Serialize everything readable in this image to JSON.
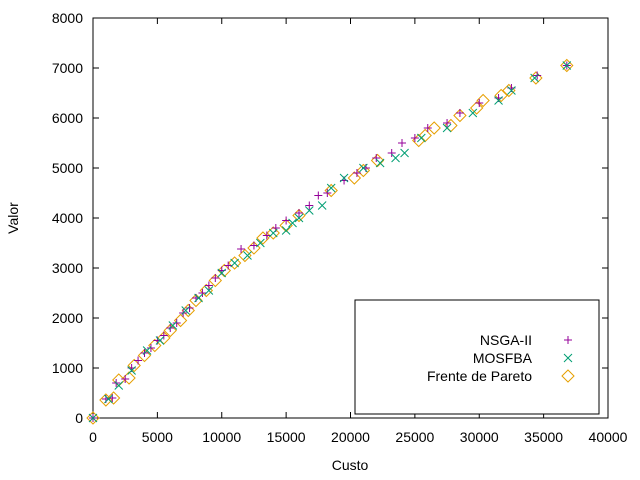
{
  "chart_data": {
    "type": "scatter",
    "title": "",
    "xlabel": "Custo",
    "ylabel": "Valor",
    "xlim": [
      0,
      40000
    ],
    "ylim": [
      0,
      8000
    ],
    "xticks": [
      0,
      5000,
      10000,
      15000,
      20000,
      25000,
      30000,
      35000,
      40000
    ],
    "yticks": [
      0,
      1000,
      2000,
      3000,
      4000,
      5000,
      6000,
      7000,
      8000
    ],
    "grid": false,
    "legend_position": "bottom-right",
    "series": [
      {
        "name": "NSGA-II",
        "color": "#94009a",
        "marker": "plus",
        "points": [
          [
            0,
            0
          ],
          [
            1000,
            380
          ],
          [
            1500,
            400
          ],
          [
            1800,
            700
          ],
          [
            2500,
            780
          ],
          [
            3000,
            1000
          ],
          [
            3500,
            1150
          ],
          [
            4000,
            1300
          ],
          [
            4500,
            1400
          ],
          [
            5000,
            1550
          ],
          [
            5500,
            1650
          ],
          [
            6000,
            1800
          ],
          [
            6500,
            1900
          ],
          [
            7000,
            2100
          ],
          [
            7500,
            2200
          ],
          [
            8000,
            2400
          ],
          [
            8500,
            2500
          ],
          [
            9000,
            2650
          ],
          [
            9500,
            2800
          ],
          [
            10000,
            2950
          ],
          [
            10500,
            3050
          ],
          [
            11500,
            3380
          ],
          [
            12500,
            3450
          ],
          [
            13500,
            3650
          ],
          [
            14200,
            3800
          ],
          [
            15000,
            3950
          ],
          [
            16000,
            4100
          ],
          [
            16800,
            4250
          ],
          [
            17500,
            4450
          ],
          [
            18200,
            4500
          ],
          [
            19500,
            4750
          ],
          [
            20500,
            4900
          ],
          [
            21200,
            5000
          ],
          [
            22000,
            5200
          ],
          [
            23200,
            5300
          ],
          [
            24000,
            5500
          ],
          [
            25000,
            5600
          ],
          [
            26000,
            5800
          ],
          [
            27500,
            5900
          ],
          [
            28500,
            6100
          ],
          [
            30000,
            6300
          ],
          [
            31500,
            6400
          ],
          [
            32500,
            6600
          ],
          [
            34500,
            6850
          ],
          [
            36800,
            7050
          ]
        ]
      },
      {
        "name": "MOSFBA",
        "color": "#009e73",
        "marker": "cross",
        "points": [
          [
            0,
            0
          ],
          [
            1200,
            380
          ],
          [
            2000,
            650
          ],
          [
            3000,
            950
          ],
          [
            4200,
            1350
          ],
          [
            5200,
            1550
          ],
          [
            6200,
            1850
          ],
          [
            7200,
            2150
          ],
          [
            8200,
            2400
          ],
          [
            9000,
            2550
          ],
          [
            10000,
            2900
          ],
          [
            11000,
            3100
          ],
          [
            12000,
            3250
          ],
          [
            13000,
            3500
          ],
          [
            14000,
            3700
          ],
          [
            15000,
            3750
          ],
          [
            15500,
            3900
          ],
          [
            16000,
            4000
          ],
          [
            16800,
            4150
          ],
          [
            17800,
            4250
          ],
          [
            18500,
            4600
          ],
          [
            19500,
            4800
          ],
          [
            21000,
            5000
          ],
          [
            22300,
            5100
          ],
          [
            23500,
            5200
          ],
          [
            24200,
            5300
          ],
          [
            25500,
            5600
          ],
          [
            27500,
            5800
          ],
          [
            29500,
            6100
          ],
          [
            31500,
            6350
          ],
          [
            32500,
            6550
          ],
          [
            34300,
            6800
          ],
          [
            36800,
            7050
          ]
        ]
      },
      {
        "name": "Frente de Pareto",
        "color": "#e69f00",
        "marker": "diamond",
        "points": [
          [
            0,
            0
          ],
          [
            1000,
            360
          ],
          [
            1600,
            400
          ],
          [
            2000,
            760
          ],
          [
            2800,
            800
          ],
          [
            3200,
            1050
          ],
          [
            4000,
            1250
          ],
          [
            4800,
            1450
          ],
          [
            5500,
            1600
          ],
          [
            6000,
            1750
          ],
          [
            6800,
            1950
          ],
          [
            7400,
            2150
          ],
          [
            8000,
            2350
          ],
          [
            8800,
            2550
          ],
          [
            9500,
            2750
          ],
          [
            10200,
            2950
          ],
          [
            11000,
            3100
          ],
          [
            11800,
            3250
          ],
          [
            12500,
            3400
          ],
          [
            13200,
            3600
          ],
          [
            14000,
            3700
          ],
          [
            15000,
            3850
          ],
          [
            16000,
            4050
          ],
          [
            18500,
            4550
          ],
          [
            20300,
            4800
          ],
          [
            21000,
            4950
          ],
          [
            22100,
            5150
          ],
          [
            25300,
            5550
          ],
          [
            25800,
            5650
          ],
          [
            26500,
            5800
          ],
          [
            27800,
            5850
          ],
          [
            28500,
            6050
          ],
          [
            29800,
            6200
          ],
          [
            30300,
            6350
          ],
          [
            31700,
            6450
          ],
          [
            32300,
            6550
          ],
          [
            34400,
            6800
          ],
          [
            36800,
            7050
          ]
        ]
      }
    ]
  }
}
